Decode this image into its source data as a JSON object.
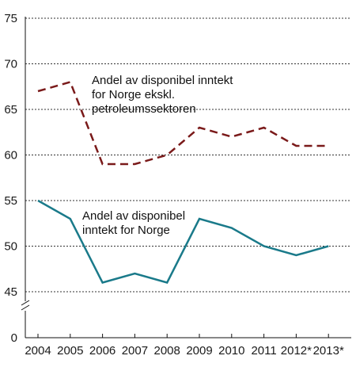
{
  "chart_data": {
    "type": "line",
    "x": [
      "2004",
      "2005",
      "2006",
      "2007",
      "2008",
      "2009",
      "2010",
      "2011",
      "2012*",
      "2013*"
    ],
    "y_ticks": [
      75,
      70,
      65,
      60,
      55,
      50,
      45,
      0
    ],
    "ylim": [
      45,
      75
    ],
    "axis_break": true,
    "grid": true,
    "series": [
      {
        "name": "Andel av disponibel inntekt for Norge ekskl. petroleumssektoren",
        "name_lines": [
          "Andel av disponibel inntekt",
          "for Norge ekskl.",
          "petroleumssektoren"
        ],
        "values": [
          67,
          68,
          59,
          59,
          60,
          63,
          62,
          63,
          61,
          61
        ],
        "color": "#7a1a1a",
        "style": "dashed"
      },
      {
        "name": "Andel av disponibel inntekt for Norge",
        "name_lines": [
          "Andel av disponibel",
          "inntekt for Norge"
        ],
        "values": [
          55,
          53,
          46,
          47,
          46,
          53,
          52,
          50,
          49,
          50
        ],
        "color": "#1a7a8a",
        "style": "solid"
      }
    ]
  }
}
